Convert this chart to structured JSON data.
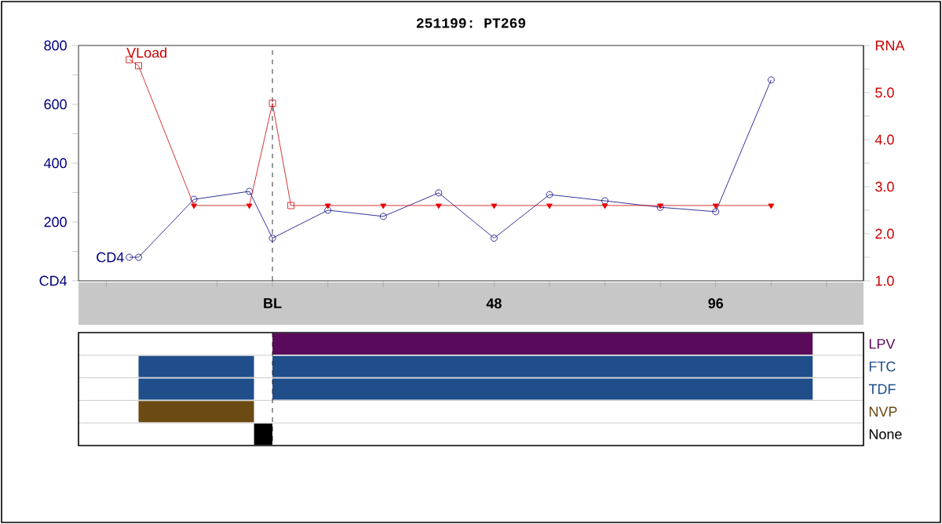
{
  "chart_data": [
    {
      "type": "line",
      "title": "251199: PT269",
      "xlim": [
        -42,
        128
      ],
      "xticks": [
        {
          "value": -36,
          "label": null
        },
        {
          "value": -12,
          "label": null
        },
        {
          "value": 0,
          "label": "BL"
        },
        {
          "value": 12,
          "label": null
        },
        {
          "value": 24,
          "label": null
        },
        {
          "value": 36,
          "label": null
        },
        48,
        {
          "value": 60,
          "label": null
        },
        {
          "value": 72,
          "label": null
        },
        {
          "value": 84,
          "label": null
        },
        96,
        {
          "value": 108,
          "label": null
        },
        {
          "value": 120,
          "label": null
        }
      ],
      "ylim": [
        0,
        800
      ],
      "yticks": [
        {
          "value": 0,
          "label": "CD4"
        },
        {
          "value": 100,
          "label": null
        },
        200,
        {
          "value": 300,
          "label": null
        },
        400,
        {
          "value": 500,
          "label": null
        },
        600,
        {
          "value": 700,
          "label": null
        },
        800
      ],
      "y2lim": [
        1,
        6
      ],
      "y2ticks": [
        {
          "value": 1,
          "label": "1.0"
        },
        {
          "value": 1.5,
          "label": null
        },
        {
          "value": 2,
          "label": "2.0"
        },
        {
          "value": 2.5,
          "label": null
        },
        {
          "value": 3,
          "label": "3.0"
        },
        {
          "value": 3.5,
          "label": null
        },
        {
          "value": 4,
          "label": "4.0"
        },
        {
          "value": 4.5,
          "label": null
        },
        {
          "value": 5,
          "label": "5.0"
        },
        {
          "value": 5.5,
          "label": null
        },
        {
          "value": 6,
          "label": "RNA"
        }
      ],
      "series": [
        {
          "name": "CD4",
          "type": "line",
          "color": "#000080",
          "marker": "circle",
          "x": [
            -31,
            -29,
            -17,
            -5,
            0,
            12,
            24,
            36,
            48,
            60,
            72,
            84,
            96,
            108
          ],
          "values": [
            80,
            80,
            277,
            304,
            145,
            240,
            219,
            299,
            145,
            293,
            272,
            250,
            235,
            683
          ]
        },
        {
          "name": "VLoad",
          "type": "line",
          "axis": "y2",
          "color": "#cc0000",
          "marker": "none",
          "x": [
            -31,
            -29,
            -17,
            -5,
            0,
            4,
            12,
            24,
            36,
            48,
            60,
            72,
            84,
            96,
            108
          ],
          "values": [
            5.7,
            5.57,
            2.6,
            2.6,
            4.77,
            2.6,
            2.6,
            2.6,
            2.6,
            2.6,
            2.6,
            2.6,
            2.6,
            2.6,
            2.6
          ]
        },
        {
          "type": "scatter",
          "axis": "y2",
          "color": "#cc0000",
          "marker": "square",
          "x": [
            -31,
            -29,
            0,
            4
          ],
          "values": [
            5.7,
            5.57,
            4.77,
            2.6
          ]
        },
        {
          "type": "scatter",
          "axis": "y2",
          "color": "#ee0000",
          "marker": "triangle",
          "x": [
            -17,
            -5,
            12,
            24,
            36,
            48,
            60,
            72,
            84,
            96,
            108
          ],
          "values": [
            2.6,
            2.6,
            2.6,
            2.6,
            2.6,
            2.6,
            2.6,
            2.6,
            2.6,
            2.6,
            2.6
          ]
        }
      ],
      "ref_lines": [
        {
          "axis": "x",
          "value": 0,
          "color": "#000000",
          "line_style": "dashed"
        }
      ]
    },
    {
      "type": "bar",
      "orientation": "horizontal",
      "categories": [
        "LPV",
        "FTC",
        "TDF",
        "NVP",
        "None"
      ],
      "xlim": [
        -42,
        128
      ],
      "tick_labels": "y",
      "grid": "y",
      "series": [
        {
          "colors": [
            null,
            "#1f4e8a",
            "#1f4e8a",
            "#6b4a14",
            "#000000"
          ],
          "base": [
            null,
            -29,
            -29,
            -29,
            -4
          ],
          "values": [
            null,
            25,
            25,
            25,
            4
          ]
        },
        {
          "colors": [
            "#5a0a5a",
            "#1f4e8a",
            "#1f4e8a",
            null,
            null
          ],
          "base": [
            0,
            0,
            0,
            null,
            null
          ],
          "values": [
            117,
            117,
            117,
            null,
            null
          ]
        }
      ],
      "ref_lines": [
        {
          "axis": "x",
          "value": 0,
          "color": "#000000",
          "line_style": "dashed"
        }
      ]
    }
  ]
}
